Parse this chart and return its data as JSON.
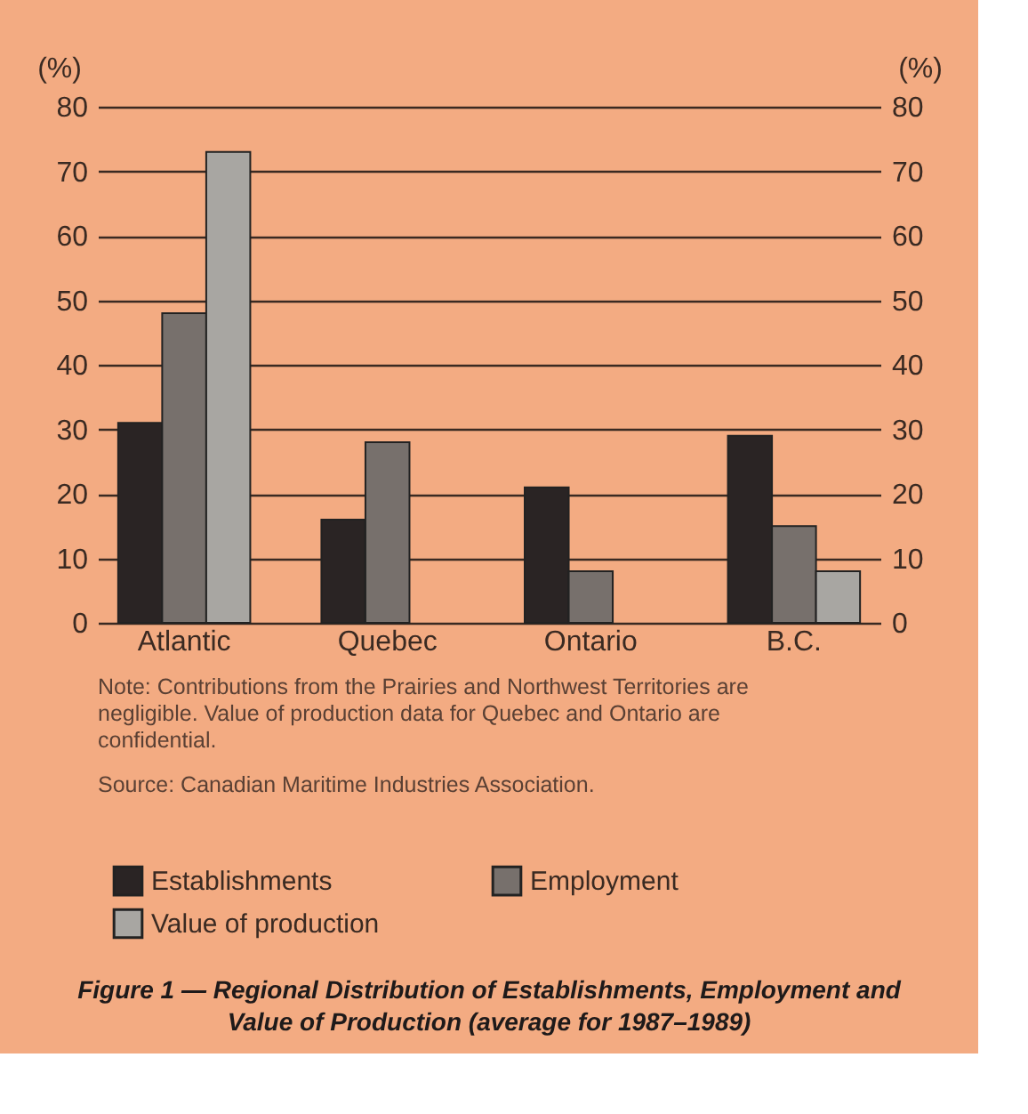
{
  "chart_data": {
    "type": "bar",
    "title": "Figure 1 — Regional Distribution of Establishments, Employment and Value of Production (average for 1987–1989)",
    "ylabel": "(%)",
    "y2label": "(%)",
    "categories": [
      "Atlantic",
      "Quebec",
      "Ontario",
      "B.C."
    ],
    "series": [
      {
        "name": "Establishments",
        "color": "#2a2424",
        "values": [
          31,
          16,
          21,
          29
        ]
      },
      {
        "name": "Employment",
        "color": "#77706c",
        "values": [
          48,
          28,
          8,
          15
        ]
      },
      {
        "name": "Value of production",
        "color": "#a8a6a2",
        "values": [
          73,
          null,
          null,
          8
        ]
      }
    ],
    "ylim": [
      0,
      80
    ],
    "yticks": [
      0,
      10,
      20,
      30,
      40,
      50,
      60,
      70,
      80
    ],
    "y2lim": [
      0,
      80
    ],
    "y2ticks": [
      0,
      10,
      20,
      30,
      40,
      50,
      60,
      70,
      80
    ],
    "grid": "y",
    "legend": "bottom",
    "annotations": [
      "Note: Contributions from the Prairies and Northwest Territories are negligible. Value of production data for Quebec and Ontario are confidential.",
      "Source: Canadian Maritime Industries Association."
    ]
  }
}
